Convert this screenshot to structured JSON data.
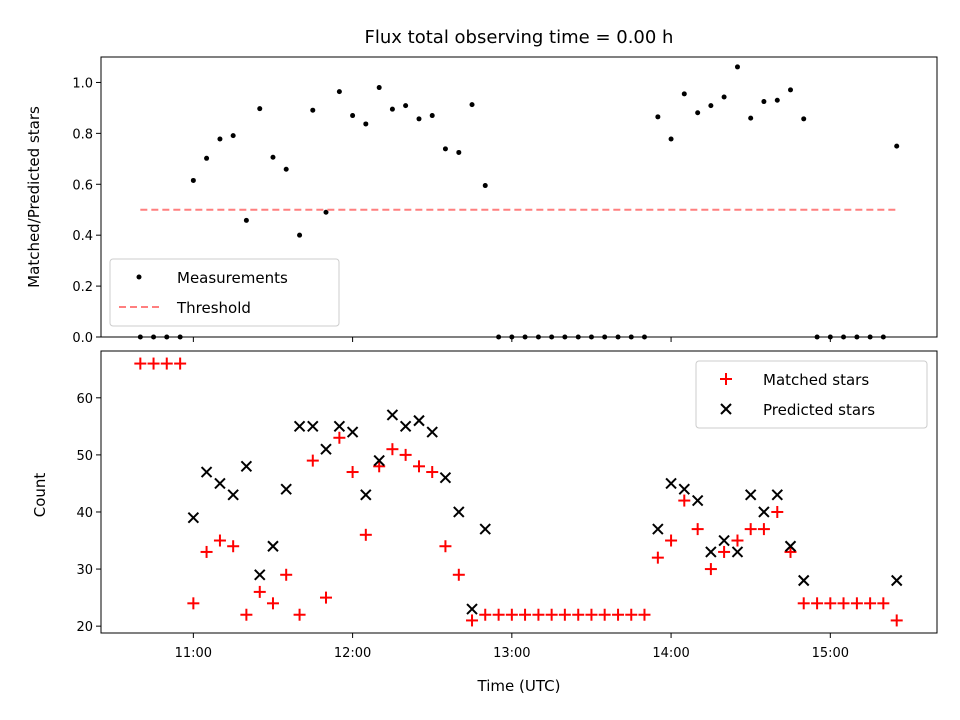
{
  "chart_data": [
    {
      "type": "scatter",
      "panel": "top",
      "title": "Flux total observing time = 0.00 h",
      "xlabel": "",
      "ylabel": "Matched/Predicted stars",
      "xlim": [
        10.42,
        15.67
      ],
      "ylim": [
        0.0,
        1.1
      ],
      "yticks": [
        0.0,
        0.2,
        0.4,
        0.6,
        0.8,
        1.0
      ],
      "ytick_labels": [
        "0.0",
        "0.2",
        "0.4",
        "0.6",
        "0.8",
        "1.0"
      ],
      "xticks": [
        11,
        12,
        13,
        14,
        15
      ],
      "grid": false,
      "legend_position": "lower-left",
      "series": [
        {
          "name": "Measurements",
          "style": "dot",
          "color": "#000000",
          "x": [
            10.667,
            10.75,
            10.833,
            10.917,
            11.0,
            11.083,
            11.167,
            11.25,
            11.333,
            11.417,
            11.5,
            11.583,
            11.667,
            11.75,
            11.833,
            11.917,
            12.0,
            12.083,
            12.167,
            12.25,
            12.333,
            12.417,
            12.5,
            12.583,
            12.667,
            12.75,
            12.833,
            12.917,
            13.0,
            13.083,
            13.167,
            13.25,
            13.333,
            13.417,
            13.5,
            13.583,
            13.667,
            13.75,
            13.833,
            13.917,
            14.0,
            14.083,
            14.167,
            14.25,
            14.333,
            14.417,
            14.5,
            14.583,
            14.667,
            14.75,
            14.833,
            14.917,
            15.0,
            15.083,
            15.167,
            15.25,
            15.333,
            15.417
          ],
          "y": [
            0.0,
            0.0,
            0.0,
            0.0,
            0.615,
            0.702,
            0.778,
            0.791,
            0.458,
            0.897,
            0.706,
            0.659,
            0.4,
            0.891,
            0.49,
            0.964,
            0.87,
            0.837,
            0.98,
            0.895,
            0.909,
            0.857,
            0.87,
            0.739,
            0.725,
            0.913,
            0.595,
            0.0,
            0.0,
            0.0,
            0.0,
            0.0,
            0.0,
            0.0,
            0.0,
            0.0,
            0.0,
            0.0,
            0.0,
            0.865,
            0.778,
            0.955,
            0.881,
            0.909,
            0.943,
            1.061,
            0.86,
            0.925,
            0.93,
            0.971,
            0.857,
            0.0,
            0.0,
            0.0,
            0.0,
            0.0,
            0.0,
            0.75
          ]
        },
        {
          "name": "Threshold",
          "style": "dashed-line",
          "color": "#ff7f7f",
          "x": [
            10.667,
            15.417
          ],
          "y": [
            0.5,
            0.5
          ]
        }
      ]
    },
    {
      "type": "scatter",
      "panel": "bottom",
      "title": "",
      "xlabel": "Time (UTC)",
      "ylabel": "Count",
      "xlim": [
        10.42,
        15.67
      ],
      "ylim": [
        18.8,
        68.2
      ],
      "yticks": [
        20,
        30,
        40,
        50,
        60
      ],
      "ytick_labels": [
        "20",
        "30",
        "40",
        "50",
        "60"
      ],
      "xticks": [
        11,
        12,
        13,
        14,
        15
      ],
      "xtick_labels": [
        "11:00",
        "12:00",
        "13:00",
        "14:00",
        "15:00"
      ],
      "grid": false,
      "legend_position": "upper-right",
      "series": [
        {
          "name": "Matched stars",
          "style": "plus",
          "color": "#ff0000",
          "x": [
            10.667,
            10.75,
            10.833,
            10.917,
            11.0,
            11.083,
            11.167,
            11.25,
            11.333,
            11.417,
            11.5,
            11.583,
            11.667,
            11.75,
            11.833,
            11.917,
            12.0,
            12.083,
            12.167,
            12.25,
            12.333,
            12.417,
            12.5,
            12.583,
            12.667,
            12.75,
            12.833,
            12.917,
            13.0,
            13.083,
            13.167,
            13.25,
            13.333,
            13.417,
            13.5,
            13.583,
            13.667,
            13.75,
            13.833,
            13.917,
            14.0,
            14.083,
            14.167,
            14.25,
            14.333,
            14.417,
            14.5,
            14.583,
            14.667,
            14.75,
            14.833,
            14.917,
            15.0,
            15.083,
            15.167,
            15.25,
            15.333,
            15.417
          ],
          "y": [
            66,
            66,
            66,
            66,
            24,
            33,
            35,
            34,
            22,
            26,
            24,
            29,
            22,
            49,
            25,
            53,
            47,
            36,
            48,
            51,
            50,
            48,
            47,
            34,
            29,
            21,
            22,
            22,
            22,
            22,
            22,
            22,
            22,
            22,
            22,
            22,
            22,
            22,
            22,
            32,
            35,
            42,
            37,
            30,
            33,
            35,
            37,
            37,
            40,
            33,
            24,
            24,
            24,
            24,
            24,
            24,
            24,
            21
          ]
        },
        {
          "name": "Predicted stars",
          "style": "x",
          "color": "#000000",
          "x": [
            11.0,
            11.083,
            11.167,
            11.25,
            11.333,
            11.417,
            11.5,
            11.583,
            11.667,
            11.75,
            11.833,
            11.917,
            12.0,
            12.083,
            12.167,
            12.25,
            12.333,
            12.417,
            12.5,
            12.583,
            12.667,
            12.75,
            12.833,
            13.917,
            14.0,
            14.083,
            14.167,
            14.25,
            14.333,
            14.417,
            14.5,
            14.583,
            14.667,
            14.75,
            14.833,
            15.417
          ],
          "y": [
            39,
            47,
            45,
            43,
            48,
            29,
            34,
            44,
            55,
            55,
            51,
            55,
            54,
            43,
            49,
            57,
            55,
            56,
            54,
            46,
            40,
            23,
            37,
            37,
            45,
            44,
            42,
            33,
            35,
            33,
            43,
            40,
            43,
            34,
            28,
            28
          ]
        }
      ]
    }
  ]
}
